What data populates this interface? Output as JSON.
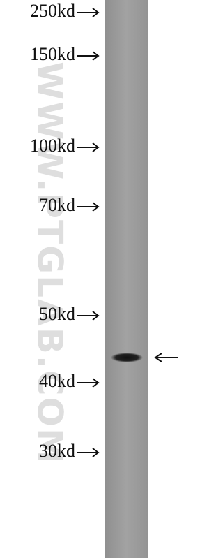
{
  "markers": [
    "250kd",
    "150kd",
    "100kd",
    "70kd",
    "50kd",
    "40kd",
    "30kd"
  ],
  "watermark": "WWW.PTGLAB.COM"
}
